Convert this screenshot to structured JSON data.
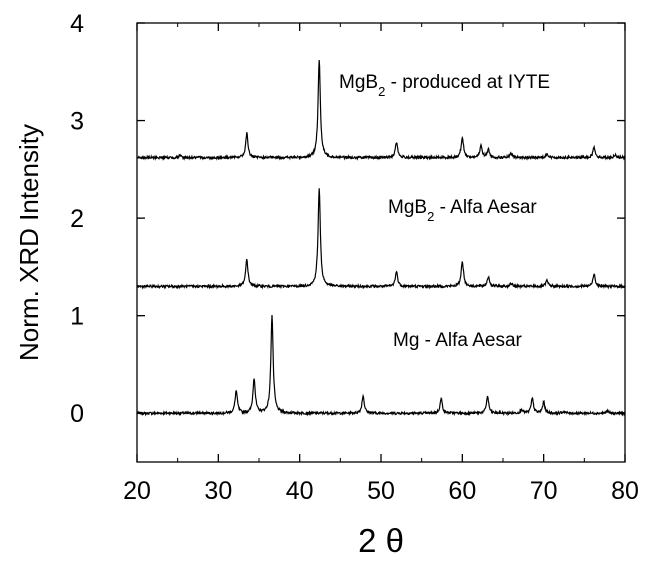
{
  "chart_data": {
    "type": "line",
    "title": "",
    "xlabel": "2 θ",
    "ylabel": "Norm. XRD Intensity",
    "xlim": [
      20,
      80
    ],
    "ylim": [
      -0.5,
      4
    ],
    "xticks": [
      "20",
      "30",
      "40",
      "50",
      "60",
      "70",
      "80"
    ],
    "yticks": [
      "0",
      "1",
      "2",
      "3",
      "4"
    ],
    "grid": false,
    "legend": "none",
    "series": [
      {
        "name": "Mg - Alfa Aesar",
        "color": "#000000",
        "baseline": 0.0,
        "peaks": [
          {
            "x": 32.2,
            "y": 0.23
          },
          {
            "x": 34.4,
            "y": 0.36
          },
          {
            "x": 36.6,
            "y": 1.0
          },
          {
            "x": 47.8,
            "y": 0.18
          },
          {
            "x": 57.4,
            "y": 0.15
          },
          {
            "x": 63.1,
            "y": 0.17
          },
          {
            "x": 67.3,
            "y": 0.04
          },
          {
            "x": 68.6,
            "y": 0.15
          },
          {
            "x": 70.0,
            "y": 0.11
          },
          {
            "x": 72.5,
            "y": 0.02
          },
          {
            "x": 77.8,
            "y": 0.02
          }
        ]
      },
      {
        "name": "MgB₂ - Alfa Aesar",
        "label_main": "MgB",
        "label_sub": "2",
        "label_rest": " - Alfa Aesar",
        "color": "#000000",
        "baseline": 1.3,
        "peaks": [
          {
            "x": 33.5,
            "y": 0.28
          },
          {
            "x": 42.4,
            "y": 1.0
          },
          {
            "x": 51.9,
            "y": 0.15
          },
          {
            "x": 60.0,
            "y": 0.26
          },
          {
            "x": 63.2,
            "y": 0.1
          },
          {
            "x": 66.0,
            "y": 0.03
          },
          {
            "x": 70.4,
            "y": 0.06
          },
          {
            "x": 76.2,
            "y": 0.13
          }
        ]
      },
      {
        "name": "MgB₂ - produced at IYTE",
        "label_main": "MgB",
        "label_sub": "2",
        "label_rest": " - produced at IYTE",
        "color": "#000000",
        "baseline": 2.62,
        "peaks": [
          {
            "x": 25.3,
            "y": 0.02
          },
          {
            "x": 33.5,
            "y": 0.25
          },
          {
            "x": 42.4,
            "y": 1.0
          },
          {
            "x": 51.9,
            "y": 0.16
          },
          {
            "x": 60.0,
            "y": 0.21
          },
          {
            "x": 62.3,
            "y": 0.12
          },
          {
            "x": 63.2,
            "y": 0.08
          },
          {
            "x": 66.0,
            "y": 0.04
          },
          {
            "x": 70.4,
            "y": 0.04
          },
          {
            "x": 76.2,
            "y": 0.11
          },
          {
            "x": 78.8,
            "y": 0.03
          }
        ]
      }
    ]
  }
}
